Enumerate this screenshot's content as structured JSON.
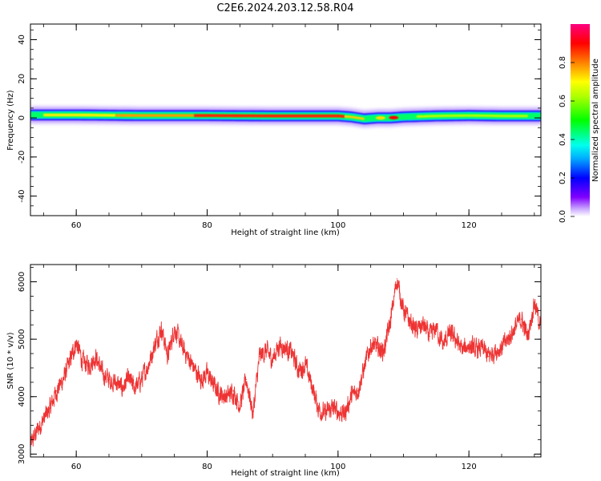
{
  "title": "C2E6.2024.203.12.58.R04",
  "colorbar": {
    "label": "Normalized spectral amplitude",
    "ticks": [
      "0.0",
      "0.2",
      "0.4",
      "0.6",
      "0.8"
    ]
  },
  "chart_data": [
    {
      "type": "heatmap",
      "xlabel": "Height of straight line (km)",
      "ylabel": "Frequency (Hz)",
      "xlim": [
        53,
        131
      ],
      "ylim": [
        -50,
        48
      ],
      "xticks": [
        "60",
        "80",
        "100",
        "120"
      ],
      "yticks": [
        "40",
        "20",
        "0",
        "-20",
        "-40"
      ],
      "band_center_hz": [
        {
          "x": 53,
          "y": 1.5
        },
        {
          "x": 60,
          "y": 1.5
        },
        {
          "x": 70,
          "y": 1.2
        },
        {
          "x": 80,
          "y": 1.2
        },
        {
          "x": 90,
          "y": 1.0
        },
        {
          "x": 100,
          "y": 1.0
        },
        {
          "x": 102,
          "y": 0.5
        },
        {
          "x": 104,
          "y": -0.5
        },
        {
          "x": 106,
          "y": 0.0
        },
        {
          "x": 108,
          "y": 0.0
        },
        {
          "x": 110,
          "y": 0.5
        },
        {
          "x": 115,
          "y": 1.0
        },
        {
          "x": 120,
          "y": 1.2
        },
        {
          "x": 125,
          "y": 1.0
        },
        {
          "x": 131,
          "y": 1.0
        }
      ],
      "band_halfwidth_hz": 5,
      "peak_amplitude": 1.0
    },
    {
      "type": "line",
      "xlabel": "Height of straight line (km)",
      "ylabel": "SNR (10 * v/v)",
      "xlim": [
        53,
        131
      ],
      "ylim": [
        2950,
        6300
      ],
      "xticks": [
        "60",
        "80",
        "100",
        "120"
      ],
      "yticks": [
        "6000",
        "5000",
        "4000",
        "3000"
      ],
      "color": "#ee3333",
      "series": [
        {
          "x": [
            53,
            54,
            55,
            56,
            57,
            58,
            59,
            60,
            61,
            62,
            63,
            64,
            65,
            66,
            67,
            68,
            69,
            70,
            71,
            72,
            73,
            74,
            75,
            76,
            77,
            78,
            79,
            80,
            81,
            82,
            83,
            84,
            85,
            86,
            87,
            88,
            89,
            90,
            91,
            92,
            93,
            94,
            95,
            96,
            97,
            98,
            99,
            100,
            101,
            102,
            103,
            104,
            105,
            106,
            107,
            108,
            109,
            110,
            111,
            112,
            113,
            114,
            115,
            116,
            117,
            118,
            119,
            120,
            121,
            122,
            123,
            124,
            125,
            126,
            127,
            128,
            129,
            130,
            131
          ],
          "y": [
            3150,
            3400,
            3600,
            3800,
            4100,
            4300,
            4600,
            4950,
            4600,
            4550,
            4700,
            4400,
            4300,
            4250,
            4150,
            4300,
            4150,
            4300,
            4550,
            4900,
            5200,
            4700,
            5200,
            4900,
            4700,
            4500,
            4300,
            4400,
            4200,
            4050,
            4000,
            4100,
            3850,
            4300,
            3700,
            4700,
            4800,
            4650,
            4900,
            4850,
            4750,
            4450,
            4550,
            4200,
            3800,
            3700,
            3800,
            3750,
            3700,
            4000,
            4100,
            4500,
            4900,
            4850,
            4800,
            5300,
            6050,
            5500,
            5300,
            5150,
            5250,
            5050,
            5200,
            4900,
            5100,
            5000,
            4800,
            4900,
            4800,
            4850,
            4700,
            4800,
            4850,
            5000,
            5200,
            5350,
            5050,
            5650,
            5200
          ]
        }
      ]
    }
  ]
}
